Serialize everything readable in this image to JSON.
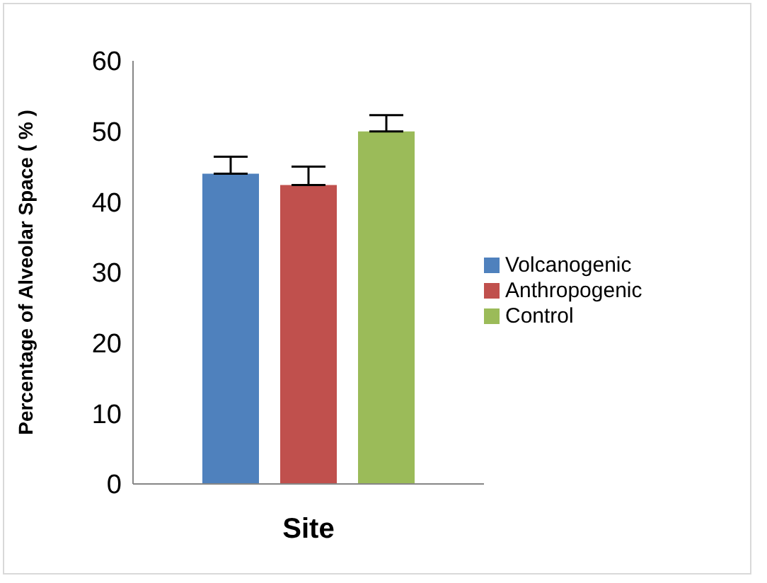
{
  "chart_data": {
    "type": "bar",
    "xlabel": "Site",
    "ylabel": "Percentage of Alveolar Space ( % )",
    "categories": [
      null
    ],
    "series": [
      {
        "name": "Volcanogenic",
        "color": "#4f81bd",
        "values": [
          44
        ],
        "errors": [
          [
            44,
            46.4
          ]
        ]
      },
      {
        "name": "Anthropogenic",
        "color": "#c0504d",
        "values": [
          42.4
        ],
        "errors": [
          [
            42.4,
            45
          ]
        ]
      },
      {
        "name": "Control",
        "color": "#9bbb59",
        "values": [
          50
        ],
        "errors": [
          [
            50,
            52.3
          ]
        ]
      }
    ],
    "ylim": [
      0,
      60
    ],
    "yticks": [
      0,
      10,
      20,
      30,
      40,
      50,
      60
    ],
    "grid": false,
    "legend": "right"
  }
}
